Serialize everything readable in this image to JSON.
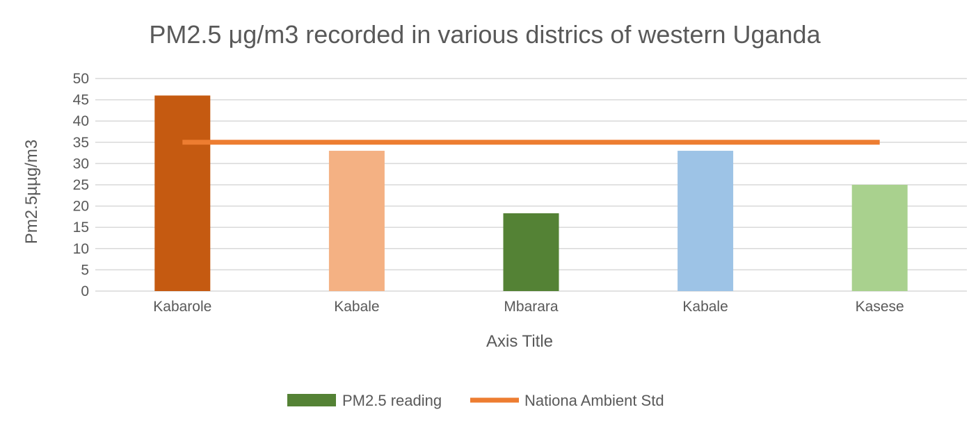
{
  "chart_data": {
    "type": "bar",
    "title": "PM2.5 μg/m3 recorded in various districs of western Uganda",
    "xlabel": "Axis Title",
    "ylabel": "Pm2.5µµg/m3",
    "categories": [
      "Kabarole",
      "Kabale",
      "Mbarara",
      "Kabale",
      "Kasese"
    ],
    "ylim": [
      0,
      50
    ],
    "yticks": [
      0,
      5,
      10,
      15,
      20,
      25,
      30,
      35,
      40,
      45,
      50
    ],
    "grid": true,
    "legend_position": "bottom",
    "series": [
      {
        "name": "PM2.5 reading",
        "type": "bar",
        "values": [
          46,
          33,
          18.3,
          33,
          25
        ],
        "color": "#548235",
        "point_colors": [
          "#c55a11",
          "#f4b183",
          "#548235",
          "#9dc3e6",
          "#a9d18e"
        ]
      },
      {
        "name": "Nationa Ambient Std",
        "type": "line",
        "values": [
          35,
          35,
          35,
          35,
          35
        ],
        "color": "#ed7d31"
      }
    ]
  }
}
